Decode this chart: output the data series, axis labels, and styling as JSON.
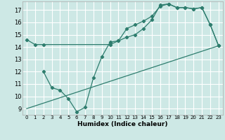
{
  "bg_color": "#cde8e5",
  "grid_color": "#ffffff",
  "line_color": "#2e7d6e",
  "xlabel": "Humidex (Indice chaleur)",
  "xlim": [
    -0.5,
    23.5
  ],
  "ylim": [
    8.5,
    17.7
  ],
  "xticks": [
    0,
    1,
    2,
    3,
    4,
    5,
    6,
    7,
    8,
    9,
    10,
    11,
    12,
    13,
    14,
    15,
    16,
    17,
    18,
    19,
    20,
    21,
    22,
    23
  ],
  "yticks": [
    9,
    10,
    11,
    12,
    13,
    14,
    15,
    16,
    17
  ],
  "line1_x": [
    0,
    23
  ],
  "line1_y": [
    9.0,
    14.1
  ],
  "line2_x": [
    0,
    1,
    2,
    10,
    11,
    12,
    13,
    14,
    15,
    16,
    17,
    18,
    19,
    20,
    21,
    22,
    23
  ],
  "line2_y": [
    14.6,
    14.2,
    14.2,
    14.2,
    14.5,
    15.5,
    15.8,
    16.1,
    16.5,
    17.3,
    17.5,
    17.2,
    17.2,
    17.1,
    17.2,
    15.8,
    14.1
  ],
  "line3_x": [
    2,
    3,
    4,
    5,
    6,
    7,
    8,
    9,
    10,
    11,
    12,
    13,
    14,
    15,
    16,
    17,
    18,
    19,
    20,
    21,
    22,
    23
  ],
  "line3_y": [
    12.0,
    10.7,
    10.5,
    9.8,
    8.75,
    9.1,
    11.5,
    13.2,
    14.4,
    14.5,
    14.8,
    15.0,
    15.5,
    16.2,
    17.4,
    17.5,
    17.2,
    17.2,
    17.1,
    17.2,
    15.8,
    14.1
  ]
}
